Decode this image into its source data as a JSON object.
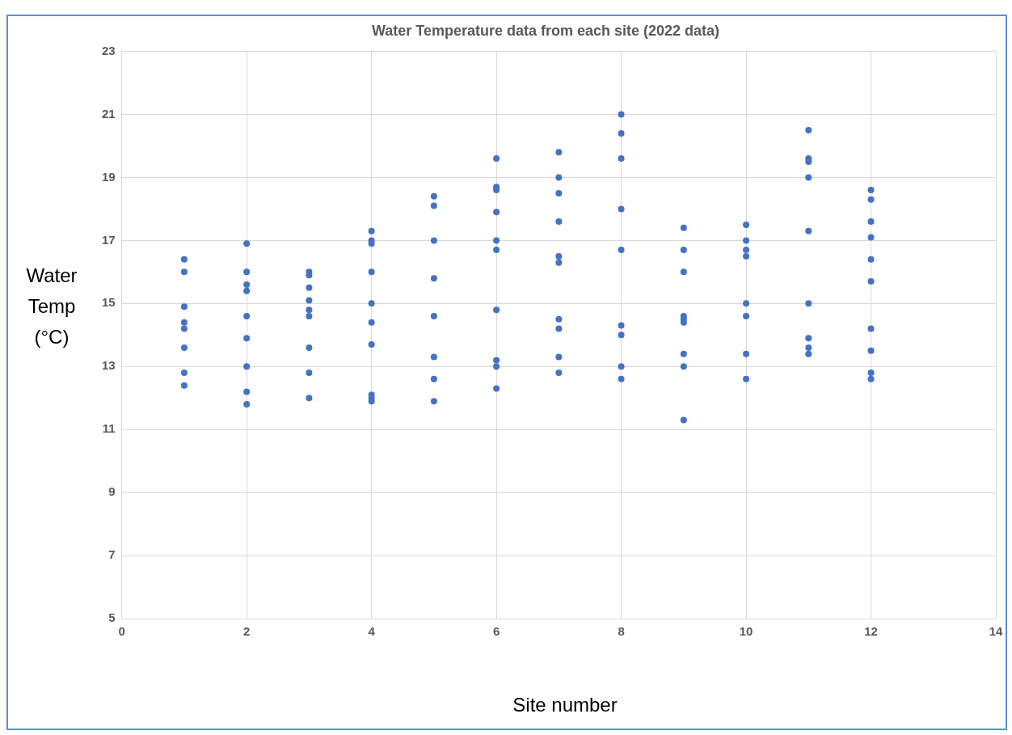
{
  "chart_data": {
    "type": "scatter",
    "title": "Water Temperature data from each site (2022 data)",
    "xlabel": "Site number",
    "ylabel": "Water Temp (°C)",
    "x": [
      1,
      1,
      1,
      1,
      1,
      1,
      1,
      1,
      2,
      2,
      2,
      2,
      2,
      2,
      2,
      2,
      2,
      3,
      3,
      3,
      3,
      3,
      3,
      3,
      3,
      3,
      4,
      4,
      4,
      4,
      4,
      4,
      4,
      4,
      4,
      4,
      5,
      5,
      5,
      5,
      5,
      5,
      5,
      5,
      6,
      6,
      6,
      6,
      6,
      6,
      6,
      6,
      6,
      6,
      7,
      7,
      7,
      7,
      7,
      7,
      7,
      7,
      7,
      7,
      8,
      8,
      8,
      8,
      8,
      8,
      8,
      8,
      8,
      9,
      9,
      9,
      9,
      9,
      9,
      9,
      9,
      9,
      10,
      10,
      10,
      10,
      10,
      10,
      10,
      10,
      11,
      11,
      11,
      11,
      11,
      11,
      11,
      11,
      11,
      12,
      12,
      12,
      12,
      12,
      12,
      12,
      12,
      12,
      12
    ],
    "series": [
      {
        "color": "#4472c4",
        "values": [
          16.4,
          16.0,
          14.9,
          14.4,
          14.2,
          13.6,
          12.8,
          12.4,
          16.9,
          16.0,
          15.6,
          15.4,
          14.6,
          13.9,
          13.0,
          12.2,
          11.8,
          16.0,
          15.9,
          15.5,
          15.1,
          14.8,
          14.6,
          13.6,
          12.8,
          12.0,
          17.3,
          17.0,
          16.9,
          16.0,
          15.0,
          14.4,
          13.7,
          12.1,
          12.0,
          11.9,
          18.4,
          18.1,
          17.0,
          15.8,
          14.6,
          13.3,
          12.6,
          11.9,
          19.6,
          18.7,
          18.6,
          17.9,
          17.0,
          16.7,
          14.8,
          13.2,
          13.0,
          12.3,
          19.8,
          19.0,
          18.5,
          17.6,
          16.5,
          16.3,
          14.5,
          14.2,
          13.3,
          12.8,
          21.0,
          20.4,
          19.6,
          18.0,
          16.7,
          14.3,
          14.0,
          13.0,
          12.6,
          17.4,
          16.7,
          16.0,
          14.6,
          14.5,
          14.4,
          13.4,
          13.0,
          11.3,
          17.5,
          17.0,
          16.7,
          16.5,
          15.0,
          14.6,
          13.4,
          12.6,
          20.5,
          19.6,
          19.5,
          19.0,
          17.3,
          15.0,
          13.9,
          13.6,
          13.4,
          18.6,
          18.3,
          17.6,
          17.1,
          16.4,
          15.7,
          14.2,
          13.5,
          12.8,
          12.6
        ]
      }
    ],
    "xlim": [
      0,
      14
    ],
    "xticks": [
      0,
      2,
      4,
      6,
      8,
      10,
      12,
      14
    ],
    "ylim": [
      5,
      23
    ],
    "yticks": [
      5,
      7,
      9,
      11,
      13,
      15,
      17,
      19,
      21,
      23
    ],
    "grid": true,
    "legend": false,
    "marker": "circle"
  }
}
